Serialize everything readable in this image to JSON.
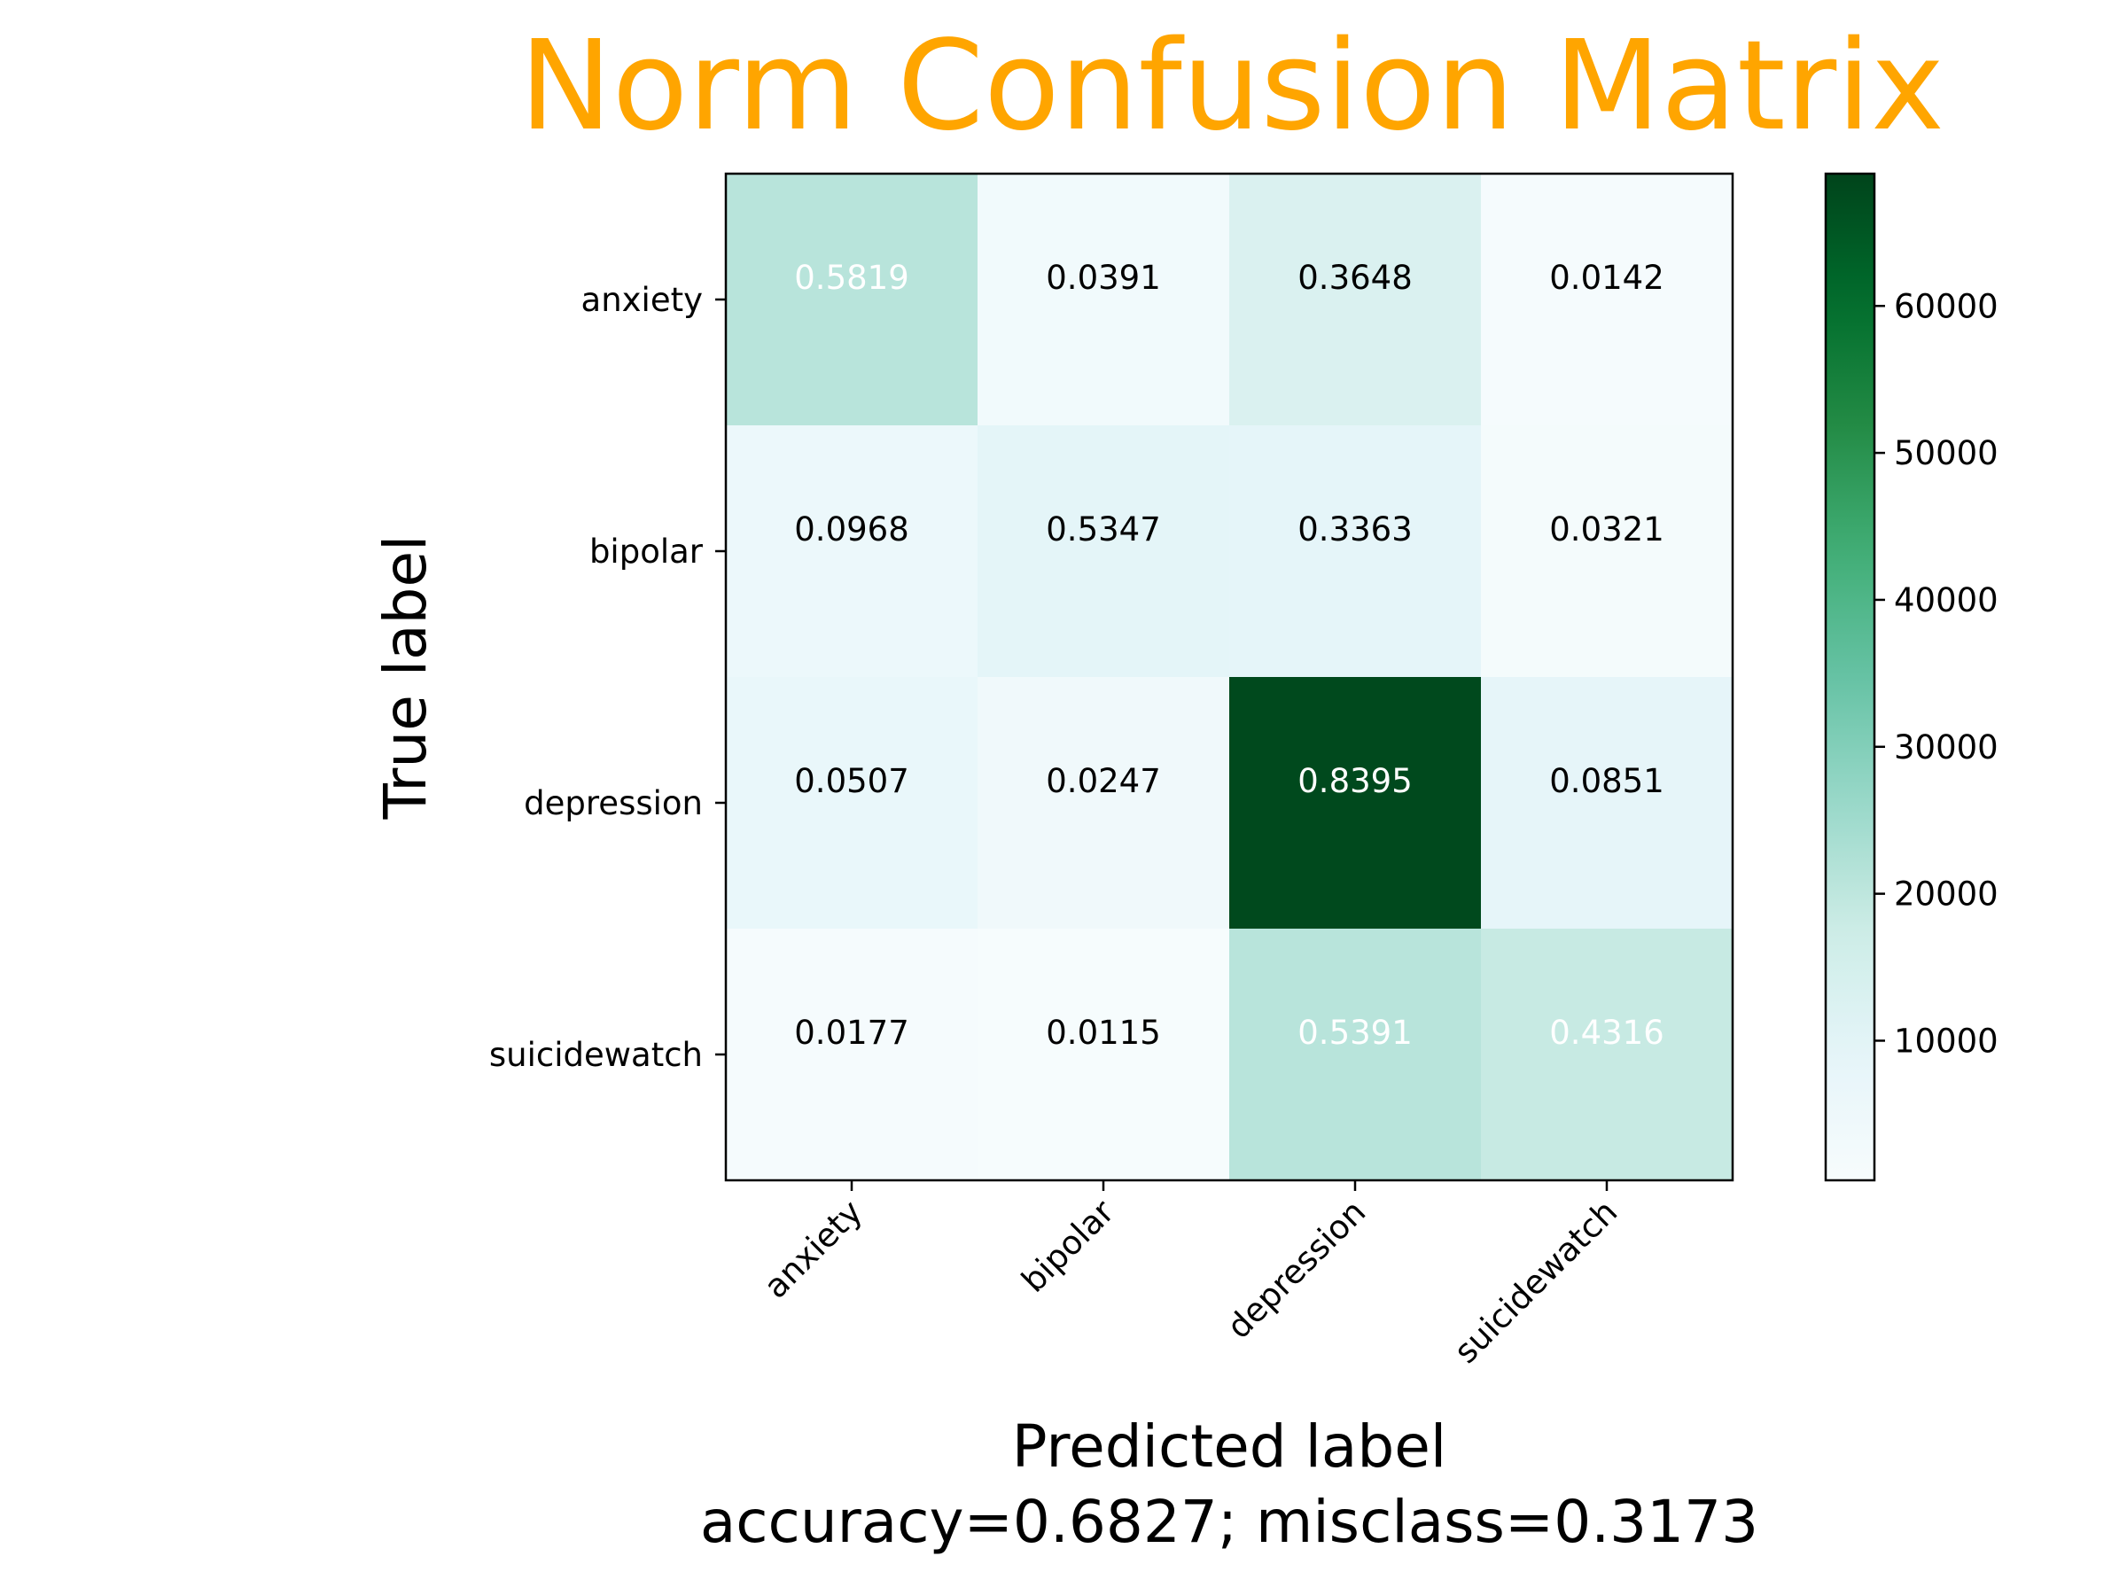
{
  "chart_data": {
    "type": "heatmap",
    "title": "Norm Confusion Matrix",
    "title_color": "#FFA500",
    "xlabel": "Predicted label",
    "xlabel_subtitle": "accuracy=0.6827; misclass=0.3173",
    "ylabel": "True label",
    "x_categories": [
      "anxiety",
      "bipolar",
      "depression",
      "suicidewatch"
    ],
    "y_categories": [
      "anxiety",
      "bipolar",
      "depression",
      "suicidewatch"
    ],
    "values": [
      [
        "0.5819",
        "0.0391",
        "0.3648",
        "0.0142"
      ],
      [
        "0.0968",
        "0.5347",
        "0.3363",
        "0.0321"
      ],
      [
        "0.0507",
        "0.0247",
        "0.8395",
        "0.0851"
      ],
      [
        "0.0177",
        "0.0115",
        "0.5391",
        "0.4316"
      ]
    ],
    "cell_color_levels": [
      [
        21000,
        3500,
        13000,
        1300
      ],
      [
        5500,
        9500,
        9000,
        1800
      ],
      [
        7000,
        4000,
        68000,
        8500
      ],
      [
        1500,
        1000,
        21000,
        18500
      ]
    ],
    "colorbar": {
      "colormap": "BuGn",
      "range": [
        500,
        69000
      ],
      "ticks": [
        "10000",
        "20000",
        "30000",
        "40000",
        "50000",
        "60000"
      ]
    },
    "grid": false
  }
}
